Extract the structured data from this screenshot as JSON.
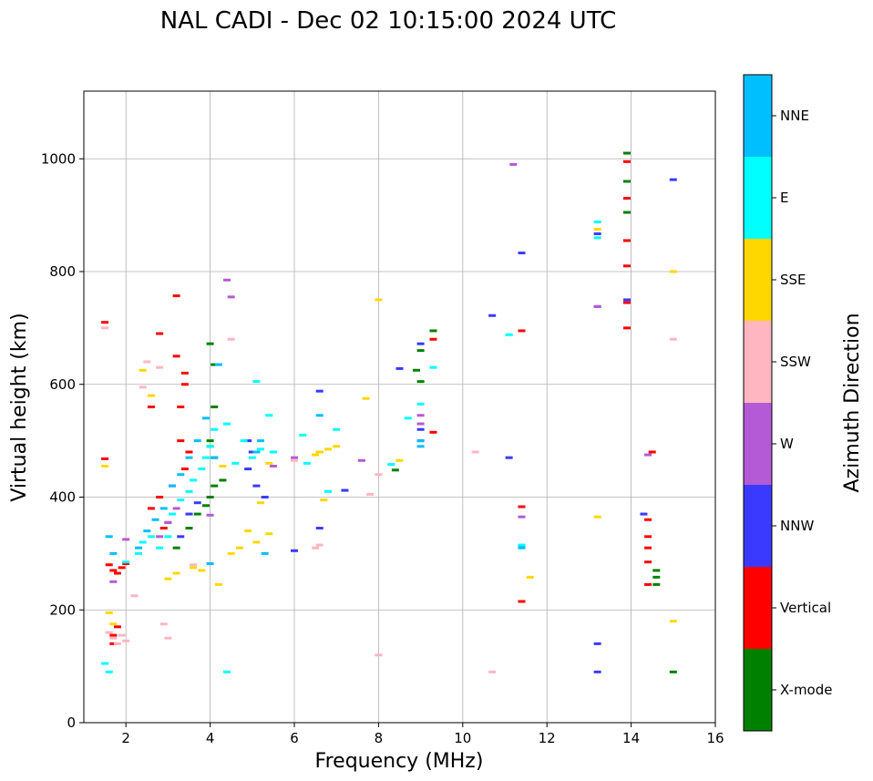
{
  "chart_data": {
    "type": "scatter",
    "title": "NAL CADI - Dec 02 10:15:00 2024 UTC",
    "xlabel": "Frequency (MHz)",
    "ylabel": "Virtual height (km)",
    "xlim": [
      1,
      16
    ],
    "ylim": [
      0,
      1120
    ],
    "xticks": [
      2,
      4,
      6,
      8,
      10,
      12,
      14,
      16
    ],
    "yticks": [
      0,
      200,
      400,
      600,
      800,
      1000
    ],
    "grid": true,
    "colorbar": {
      "label": "Azimuth Direction",
      "categories": [
        {
          "name": "X-mode",
          "color": "#008000"
        },
        {
          "name": "Vertical",
          "color": "#ff0000"
        },
        {
          "name": "NNW",
          "color": "#3a3aff"
        },
        {
          "name": "W",
          "color": "#b55ad6"
        },
        {
          "name": "SSW",
          "color": "#ffb6c1"
        },
        {
          "name": "SSE",
          "color": "#ffd700"
        },
        {
          "name": "E",
          "color": "#00ffff"
        },
        {
          "name": "NNE",
          "color": "#00bfff"
        }
      ]
    },
    "series": [
      {
        "name": "X-mode",
        "x": [
          3.2,
          3.5,
          3.7,
          3.9,
          4.0,
          4.1,
          4.3,
          4.1,
          4.0,
          9.0,
          9.0,
          9.3,
          8.9,
          8.4,
          13.9,
          13.9,
          13.9,
          13.9,
          14.6,
          14.6,
          14.6,
          15.0,
          4.0,
          4.1,
          4.1,
          4.0
        ],
        "y": [
          310,
          345,
          370,
          385,
          400,
          420,
          430,
          470,
          500,
          605,
          660,
          695,
          625,
          448,
          1010,
          960,
          905,
          855,
          270,
          258,
          245,
          90,
          672,
          635,
          560,
          490
        ]
      },
      {
        "name": "Vertical",
        "x": [
          1.5,
          1.6,
          1.7,
          1.8,
          1.9,
          2.0,
          1.7,
          1.7,
          1.8,
          2.6,
          2.8,
          2.9,
          3.0,
          3.1,
          3.3,
          3.4,
          3.5,
          3.3,
          3.2,
          3.4,
          13.9,
          13.9,
          13.9,
          13.9,
          13.9,
          13.9,
          14.4,
          14.4,
          14.4,
          14.4,
          14.4,
          11.4,
          11.4,
          11.4,
          9.0,
          9.3,
          1.5,
          2.6,
          2.8,
          3.2,
          3.4,
          14.5,
          9.3
        ],
        "y": [
          710,
          280,
          270,
          265,
          275,
          282,
          140,
          155,
          170,
          380,
          400,
          345,
          355,
          420,
          500,
          450,
          480,
          560,
          650,
          600,
          995,
          930,
          855,
          810,
          745,
          700,
          360,
          330,
          310,
          285,
          245,
          695,
          383,
          215,
          500,
          680,
          468,
          560,
          690,
          757,
          620,
          480,
          515
        ]
      },
      {
        "name": "NNW",
        "x": [
          3.3,
          3.5,
          3.7,
          4.9,
          5.1,
          5.3,
          5.0,
          4.9,
          6.0,
          6.6,
          8.5,
          9.0,
          9.0,
          10.7,
          11.1,
          11.4,
          11.4,
          13.2,
          13.2,
          14.3,
          15.0,
          13.2,
          13.2,
          13.9,
          7.2,
          6.6
        ],
        "y": [
          330,
          370,
          390,
          450,
          420,
          400,
          480,
          500,
          305,
          588,
          628,
          520,
          672,
          722,
          470,
          833,
          313,
          867,
          140,
          370,
          963,
          90,
          738,
          750,
          412,
          345
        ]
      },
      {
        "name": "W",
        "x": [
          1.7,
          2.0,
          2.8,
          3.0,
          3.2,
          4.4,
          4.5,
          5.5,
          6.0,
          6.6,
          7.6,
          9.0,
          9.0,
          11.2,
          11.4,
          14.4,
          13.2,
          4.0
        ],
        "y": [
          250,
          325,
          330,
          355,
          380,
          785,
          755,
          455,
          470,
          480,
          465,
          530,
          545,
          990,
          365,
          475,
          738,
          368
        ]
      },
      {
        "name": "SSW",
        "x": [
          1.5,
          1.6,
          1.7,
          1.8,
          1.9,
          2.0,
          2.2,
          2.4,
          2.5,
          2.8,
          3.0,
          4.5,
          6.5,
          6.6,
          7.8,
          8.0,
          8.0,
          10.3,
          10.7,
          15.0,
          2.9,
          3.6,
          6.0
        ],
        "y": [
          700,
          160,
          150,
          140,
          155,
          145,
          225,
          595,
          640,
          630,
          150,
          680,
          310,
          315,
          405,
          440,
          120,
          480,
          90,
          680,
          175,
          280,
          465
        ]
      },
      {
        "name": "SSE",
        "x": [
          1.5,
          1.6,
          1.7,
          2.4,
          2.6,
          3.0,
          3.2,
          3.6,
          3.8,
          4.3,
          4.5,
          4.7,
          4.9,
          5.2,
          5.4,
          5.4,
          6.5,
          6.6,
          6.8,
          7.0,
          7.7,
          8.0,
          8.5,
          11.6,
          13.2,
          13.2,
          15.0,
          15.0,
          4.2,
          5.1,
          6.7
        ],
        "y": [
          455,
          195,
          175,
          625,
          580,
          255,
          265,
          275,
          270,
          455,
          300,
          310,
          340,
          390,
          460,
          335,
          475,
          480,
          485,
          490,
          575,
          750,
          465,
          258,
          365,
          875,
          800,
          180,
          245,
          320,
          395
        ]
      },
      {
        "name": "E",
        "x": [
          1.5,
          1.6,
          2.0,
          2.3,
          2.4,
          2.6,
          2.8,
          3.0,
          3.1,
          3.3,
          3.5,
          3.6,
          3.8,
          3.9,
          4.0,
          4.1,
          4.4,
          4.6,
          4.8,
          5.0,
          5.2,
          5.4,
          5.5,
          6.2,
          6.3,
          6.8,
          7.0,
          8.3,
          8.7,
          9.0,
          9.3,
          11.1,
          11.4,
          13.2,
          13.2,
          5.1,
          4.4
        ],
        "y": [
          105,
          90,
          285,
          300,
          320,
          330,
          310,
          330,
          370,
          395,
          410,
          430,
          450,
          470,
          490,
          520,
          530,
          460,
          500,
          470,
          485,
          545,
          480,
          510,
          460,
          410,
          520,
          458,
          540,
          565,
          630,
          688,
          315,
          888,
          860,
          605,
          90
        ]
      },
      {
        "name": "NNE",
        "x": [
          1.6,
          1.7,
          2.3,
          2.5,
          2.7,
          2.9,
          3.1,
          3.3,
          3.5,
          3.7,
          3.9,
          4.0,
          4.1,
          4.2,
          5.1,
          5.3,
          5.2,
          6.6,
          9.0,
          11.4,
          9.0
        ],
        "y": [
          330,
          300,
          310,
          340,
          360,
          380,
          420,
          440,
          470,
          500,
          540,
          282,
          470,
          635,
          480,
          300,
          500,
          545,
          500,
          310,
          490
        ]
      }
    ]
  }
}
